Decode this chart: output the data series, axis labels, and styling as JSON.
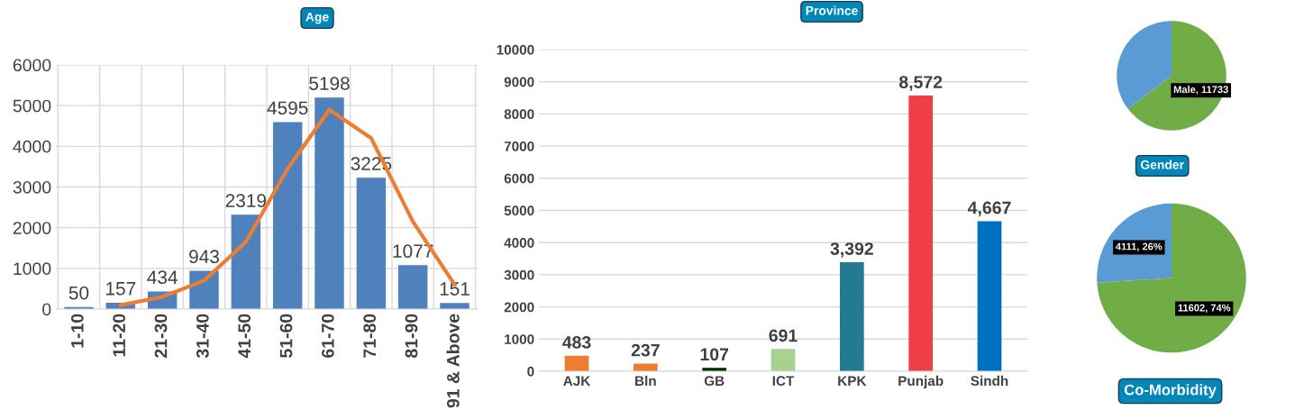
{
  "chart_data": [
    {
      "type": "bar",
      "title": "Age",
      "categories": [
        "1-10",
        "11-20",
        "21-30",
        "31-40",
        "41-50",
        "51-60",
        "61-70",
        "71-80",
        "81-90",
        "91 & Above"
      ],
      "series": [
        {
          "type": "bar",
          "color": "#4f81bd",
          "values": [
            50,
            157,
            434,
            943,
            2319,
            4595,
            5198,
            3225,
            1077,
            151
          ],
          "value_labels": [
            "50",
            "157",
            "434",
            "943",
            "2319",
            "4595",
            "5198",
            "3225",
            "1077",
            "151"
          ]
        },
        {
          "type": "line",
          "color": "#ed7d31",
          "values": [
            null,
            100,
            300,
            700,
            1650,
            3450,
            4900,
            4200,
            2150,
            600
          ]
        }
      ],
      "ylim": [
        0,
        6000
      ],
      "yticks": [
        0,
        1000,
        2000,
        3000,
        4000,
        5000,
        6000
      ],
      "grid": true,
      "marker": "none",
      "line_style": "solid"
    },
    {
      "type": "bar",
      "title": "Province",
      "categories": [
        "AJK",
        "Bln",
        "GB",
        "ICT",
        "KPK",
        "Punjab",
        "Sindh"
      ],
      "values": [
        483,
        237,
        107,
        691,
        3392,
        8572,
        4667
      ],
      "colors": [
        "#ed7d31",
        "#ed7d31",
        "#003300",
        "#a9d18e",
        "#237a91",
        "#ee4044",
        "#0070c0"
      ],
      "value_labels": [
        "483",
        "237",
        "107",
        "691",
        "3,392",
        "8,572",
        "4,667"
      ],
      "ylim": [
        0,
        10000
      ],
      "yticks": [
        0,
        1000,
        2000,
        3000,
        4000,
        5000,
        6000,
        7000,
        8000,
        9000,
        10000
      ],
      "grid": "y"
    },
    {
      "type": "pie",
      "title": "Gender",
      "categories": [
        null,
        null
      ],
      "values": [
        6416,
        11733
      ],
      "colors": [
        "#5b9bd5",
        "#70ad47"
      ],
      "value_labels": [
        null,
        "Male, 11733"
      ]
    },
    {
      "type": "pie",
      "title": "Co-Morbidity",
      "categories": [
        null,
        null
      ],
      "values": [
        26,
        74
      ],
      "colors": [
        "#5b9bd5",
        "#70ad47"
      ],
      "value_labels": [
        "4111, 26%",
        "11602, 74%"
      ]
    }
  ]
}
